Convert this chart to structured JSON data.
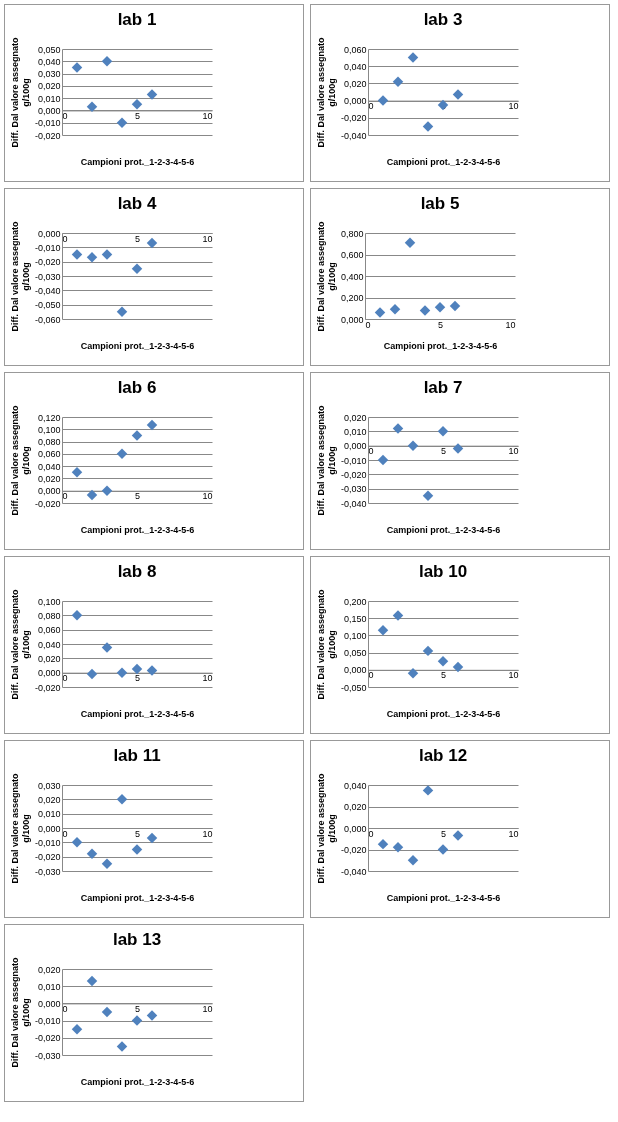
{
  "chart_data": [
    {
      "type": "scatter",
      "title": "lab 1",
      "xlabel": "Campioni prot._1-2-3-4-5-6",
      "ylabel": "Diff. Dal valore assegnato g/100g",
      "x": [
        1,
        2,
        3,
        4,
        5,
        6
      ],
      "values": [
        0.035,
        0.003,
        0.04,
        -0.01,
        0.005,
        0.013
      ],
      "color": "#4f81bd",
      "marker": "diamond",
      "grid": "y",
      "xlim": [
        0,
        10
      ],
      "xticks": [
        0,
        5,
        10
      ],
      "ylim": [
        -0.02,
        0.05
      ],
      "yticks": [
        {
          "value": -0.02,
          "label": "-0,020"
        },
        {
          "value": -0.01,
          "label": "-0,010"
        },
        {
          "value": 0,
          "label": "0,000"
        },
        {
          "value": 0.01,
          "label": "0,010"
        },
        {
          "value": 0.02,
          "label": "0,020"
        },
        {
          "value": 0.03,
          "label": "0,030"
        },
        {
          "value": 0.04,
          "label": "0,040"
        },
        {
          "value": 0.05,
          "label": "0,050"
        }
      ]
    },
    {
      "type": "scatter",
      "title": "lab 3",
      "xlabel": "Campioni prot._1-2-3-4-5-6",
      "ylabel": "Diff. Dal valore assegnato g/100g",
      "x": [
        1,
        2,
        3,
        4,
        5,
        6
      ],
      "values": [
        0.0,
        0.022,
        0.05,
        -0.03,
        -0.005,
        0.007
      ],
      "color": "#4f81bd",
      "marker": "diamond",
      "grid": "y",
      "xlim": [
        0,
        10
      ],
      "xticks": [
        0,
        5,
        10
      ],
      "ylim": [
        -0.04,
        0.06
      ],
      "yticks": [
        {
          "value": -0.04,
          "label": "-0,040"
        },
        {
          "value": -0.02,
          "label": "-0,020"
        },
        {
          "value": 0,
          "label": "0,000"
        },
        {
          "value": 0.02,
          "label": "0,020"
        },
        {
          "value": 0.04,
          "label": "0,040"
        },
        {
          "value": 0.06,
          "label": "0,060"
        }
      ]
    },
    {
      "type": "scatter",
      "title": "lab 4",
      "xlabel": "Campioni prot._1-2-3-4-5-6",
      "ylabel": "Diff. Dal valore assegnato g/100g",
      "x": [
        1,
        2,
        3,
        4,
        5,
        6
      ],
      "values": [
        -0.015,
        -0.017,
        -0.015,
        -0.055,
        -0.025,
        -0.007
      ],
      "color": "#4f81bd",
      "marker": "diamond",
      "grid": "y",
      "xlim": [
        0,
        10
      ],
      "xticks": [
        0,
        5,
        10
      ],
      "ylim": [
        -0.06,
        0
      ],
      "yticks": [
        {
          "value": -0.06,
          "label": "-0,060"
        },
        {
          "value": -0.05,
          "label": "-0,050"
        },
        {
          "value": -0.04,
          "label": "-0,040"
        },
        {
          "value": -0.03,
          "label": "-0,030"
        },
        {
          "value": -0.02,
          "label": "-0,020"
        },
        {
          "value": -0.01,
          "label": "-0,010"
        },
        {
          "value": 0,
          "label": "0,000"
        }
      ]
    },
    {
      "type": "scatter",
      "title": "lab 5",
      "xlabel": "Campioni prot._1-2-3-4-5-6",
      "ylabel": "Diff. Dal valore assegnato g/100g",
      "x": [
        1,
        2,
        3,
        4,
        5,
        6
      ],
      "values": [
        0.06,
        0.09,
        0.71,
        0.08,
        0.11,
        0.12
      ],
      "color": "#4f81bd",
      "marker": "diamond",
      "grid": "y",
      "xlim": [
        0,
        10
      ],
      "xticks": [
        0,
        5,
        10
      ],
      "ylim": [
        0,
        0.8
      ],
      "yticks": [
        {
          "value": 0,
          "label": "0,000"
        },
        {
          "value": 0.2,
          "label": "0,200"
        },
        {
          "value": 0.4,
          "label": "0,400"
        },
        {
          "value": 0.6,
          "label": "0,600"
        },
        {
          "value": 0.8,
          "label": "0,800"
        }
      ]
    },
    {
      "type": "scatter",
      "title": "lab 6",
      "xlabel": "Campioni prot._1-2-3-4-5-6",
      "ylabel": "Diff. Dal valore assegnato g/100g",
      "x": [
        1,
        2,
        3,
        4,
        5,
        6
      ],
      "values": [
        0.03,
        -0.007,
        0.0,
        0.06,
        0.09,
        0.107
      ],
      "color": "#4f81bd",
      "marker": "diamond",
      "grid": "y",
      "xlim": [
        0,
        10
      ],
      "xticks": [
        0,
        5,
        10
      ],
      "ylim": [
        -0.02,
        0.12
      ],
      "yticks": [
        {
          "value": -0.02,
          "label": "-0,020"
        },
        {
          "value": 0,
          "label": "0,000"
        },
        {
          "value": 0.02,
          "label": "0,020"
        },
        {
          "value": 0.04,
          "label": "0,040"
        },
        {
          "value": 0.06,
          "label": "0,060"
        },
        {
          "value": 0.08,
          "label": "0,080"
        },
        {
          "value": 0.1,
          "label": "0,100"
        },
        {
          "value": 0.12,
          "label": "0,120"
        }
      ]
    },
    {
      "type": "scatter",
      "title": "lab 7",
      "xlabel": "Campioni prot._1-2-3-4-5-6",
      "ylabel": "Diff. Dal valore assegnato g/100g",
      "x": [
        1,
        2,
        3,
        4,
        5,
        6
      ],
      "values": [
        -0.01,
        0.012,
        0.0,
        -0.035,
        0.01,
        -0.002
      ],
      "color": "#4f81bd",
      "marker": "diamond",
      "grid": "y",
      "xlim": [
        0,
        10
      ],
      "xticks": [
        0,
        5,
        10
      ],
      "ylim": [
        -0.04,
        0.02
      ],
      "yticks": [
        {
          "value": -0.04,
          "label": "-0,040"
        },
        {
          "value": -0.03,
          "label": "-0,030"
        },
        {
          "value": -0.02,
          "label": "-0,020"
        },
        {
          "value": -0.01,
          "label": "-0,010"
        },
        {
          "value": 0,
          "label": "0,000"
        },
        {
          "value": 0.01,
          "label": "0,010"
        },
        {
          "value": 0.02,
          "label": "0,020"
        }
      ]
    },
    {
      "type": "scatter",
      "title": "lab 8",
      "xlabel": "Campioni prot._1-2-3-4-5-6",
      "ylabel": "Diff. Dal valore assegnato g/100g",
      "x": [
        1,
        2,
        3,
        4,
        5,
        6
      ],
      "values": [
        0.08,
        -0.002,
        0.035,
        0.0,
        0.005,
        0.003
      ],
      "color": "#4f81bd",
      "marker": "diamond",
      "grid": "y",
      "xlim": [
        0,
        10
      ],
      "xticks": [
        0,
        5,
        10
      ],
      "ylim": [
        -0.02,
        0.1
      ],
      "yticks": [
        {
          "value": -0.02,
          "label": "-0,020"
        },
        {
          "value": 0,
          "label": "0,000"
        },
        {
          "value": 0.02,
          "label": "0,020"
        },
        {
          "value": 0.04,
          "label": "0,040"
        },
        {
          "value": 0.06,
          "label": "0,060"
        },
        {
          "value": 0.08,
          "label": "0,080"
        },
        {
          "value": 0.1,
          "label": "0,100"
        }
      ]
    },
    {
      "type": "scatter",
      "title": "lab 10",
      "xlabel": "Campioni prot._1-2-3-4-5-6",
      "ylabel": "Diff. Dal valore assegnato g/100g",
      "x": [
        1,
        2,
        3,
        4,
        5,
        6
      ],
      "values": [
        0.115,
        0.158,
        -0.01,
        0.055,
        0.025,
        0.008
      ],
      "color": "#4f81bd",
      "marker": "diamond",
      "grid": "y",
      "xlim": [
        0,
        10
      ],
      "xticks": [
        0,
        5,
        10
      ],
      "ylim": [
        -0.05,
        0.2
      ],
      "yticks": [
        {
          "value": -0.05,
          "label": "-0,050"
        },
        {
          "value": 0,
          "label": "0,000"
        },
        {
          "value": 0.05,
          "label": "0,050"
        },
        {
          "value": 0.1,
          "label": "0,100"
        },
        {
          "value": 0.15,
          "label": "0,150"
        },
        {
          "value": 0.2,
          "label": "0,200"
        }
      ]
    },
    {
      "type": "scatter",
      "title": "lab 11",
      "xlabel": "Campioni prot._1-2-3-4-5-6",
      "ylabel": "Diff. Dal valore assegnato g/100g",
      "x": [
        1,
        2,
        3,
        4,
        5,
        6
      ],
      "values": [
        -0.01,
        -0.018,
        -0.025,
        0.02,
        -0.015,
        -0.007
      ],
      "color": "#4f81bd",
      "marker": "diamond",
      "grid": "y",
      "xlim": [
        0,
        10
      ],
      "xticks": [
        0,
        5,
        10
      ],
      "ylim": [
        -0.03,
        0.03
      ],
      "yticks": [
        {
          "value": -0.03,
          "label": "-0,030"
        },
        {
          "value": -0.02,
          "label": "-0,020"
        },
        {
          "value": -0.01,
          "label": "-0,010"
        },
        {
          "value": 0,
          "label": "0,000"
        },
        {
          "value": 0.01,
          "label": "0,010"
        },
        {
          "value": 0.02,
          "label": "0,020"
        },
        {
          "value": 0.03,
          "label": "0,030"
        }
      ]
    },
    {
      "type": "scatter",
      "title": "lab 12",
      "xlabel": "Campioni prot._1-2-3-4-5-6",
      "ylabel": "Diff. Dal valore assegnato g/100g",
      "x": [
        1,
        2,
        3,
        4,
        5,
        6
      ],
      "values": [
        -0.015,
        -0.018,
        -0.03,
        0.035,
        -0.02,
        -0.007
      ],
      "color": "#4f81bd",
      "marker": "diamond",
      "grid": "y",
      "xlim": [
        0,
        10
      ],
      "xticks": [
        0,
        5,
        10
      ],
      "ylim": [
        -0.04,
        0.04
      ],
      "yticks": [
        {
          "value": -0.04,
          "label": "-0,040"
        },
        {
          "value": -0.02,
          "label": "-0,020"
        },
        {
          "value": 0,
          "label": "0,000"
        },
        {
          "value": 0.02,
          "label": "0,020"
        },
        {
          "value": 0.04,
          "label": "0,040"
        }
      ]
    },
    {
      "type": "scatter",
      "title": "lab 13",
      "xlabel": "Campioni prot._1-2-3-4-5-6",
      "ylabel": "Diff. Dal valore assegnato g/100g",
      "x": [
        1,
        2,
        3,
        4,
        5,
        6
      ],
      "values": [
        -0.015,
        0.013,
        -0.005,
        -0.025,
        -0.01,
        -0.007
      ],
      "color": "#4f81bd",
      "marker": "diamond",
      "grid": "y",
      "xlim": [
        0,
        10
      ],
      "xticks": [
        0,
        5,
        10
      ],
      "ylim": [
        -0.03,
        0.02
      ],
      "yticks": [
        {
          "value": -0.03,
          "label": "-0,030"
        },
        {
          "value": -0.02,
          "label": "-0,020"
        },
        {
          "value": -0.01,
          "label": "-0,010"
        },
        {
          "value": 0,
          "label": "0,000"
        },
        {
          "value": 0.01,
          "label": "0,010"
        },
        {
          "value": 0.02,
          "label": "0,020"
        }
      ]
    }
  ]
}
